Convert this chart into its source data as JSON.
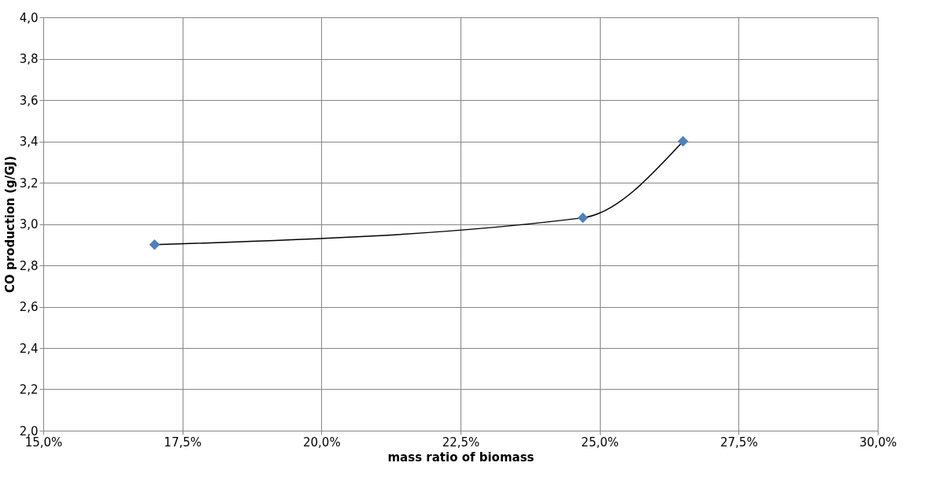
{
  "chart_data": {
    "type": "line",
    "xlabel": "mass ratio of biomass",
    "ylabel": "CO production (g/GJ)",
    "x": [
      17.0,
      24.7,
      26.5
    ],
    "series": [
      {
        "color": "#000000",
        "colors": [
          "#4f81bd",
          "#4f81bd",
          "#4f81bd"
        ],
        "values": [
          2.9,
          3.03,
          3.4
        ]
      }
    ],
    "xlim": [
      15.0,
      30.0
    ],
    "ylim": [
      2.0,
      4.0
    ],
    "xticks": [
      {
        "value": 15.0,
        "label": "15,0%"
      },
      {
        "value": 17.5,
        "label": "17,5%"
      },
      {
        "value": 20.0,
        "label": "20,0%"
      },
      {
        "value": 22.5,
        "label": "22,5%"
      },
      {
        "value": 25.0,
        "label": "25,0%"
      },
      {
        "value": 27.5,
        "label": "27,5%"
      },
      {
        "value": 30.0,
        "label": "30,0%"
      }
    ],
    "yticks": [
      {
        "value": 2.0,
        "label": "2,0"
      },
      {
        "value": 2.2,
        "label": "2,2"
      },
      {
        "value": 2.4,
        "label": "2,4"
      },
      {
        "value": 2.6,
        "label": "2,6"
      },
      {
        "value": 2.8,
        "label": "2,8"
      },
      {
        "value": 3.0,
        "label": "3,0"
      },
      {
        "value": 3.2,
        "label": "3,2"
      },
      {
        "value": 3.4,
        "label": "3,4"
      },
      {
        "value": 3.6,
        "label": "3,6"
      },
      {
        "value": 3.8,
        "label": "3,8"
      },
      {
        "value": 4.0,
        "label": "4,0"
      }
    ],
    "grid": true,
    "marker": "diamond",
    "line_style": "solid"
  }
}
